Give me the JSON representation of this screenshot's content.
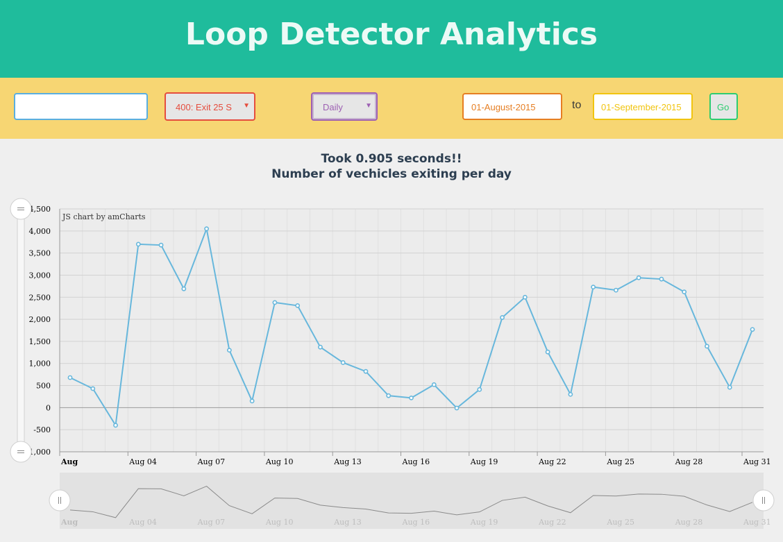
{
  "header": {
    "title": "Loop Detector Analytics"
  },
  "controls": {
    "search_value": "",
    "site_selected": "400: Exit 25 S",
    "frequency_selected": "Daily",
    "date_from": "01-August-2015",
    "to_label": "to",
    "date_to": "01-September-2015",
    "go_label": "Go"
  },
  "chart_titles": {
    "timing": "Took 0.905 seconds!!",
    "subtitle": "Number of vechicles exiting per day"
  },
  "credit": "JS chart by amCharts",
  "colors": {
    "header": "#1fbc9c",
    "controls": "#f7d673",
    "line": "#67b7dc"
  },
  "icons": {
    "dropdown": "caret-down-icon",
    "scroll_handle": "grip-icon"
  },
  "chart_data": {
    "type": "line",
    "x": [
      "Aug 01",
      "Aug 02",
      "Aug 03",
      "Aug 04",
      "Aug 05",
      "Aug 06",
      "Aug 07",
      "Aug 08",
      "Aug 09",
      "Aug 10",
      "Aug 11",
      "Aug 12",
      "Aug 13",
      "Aug 14",
      "Aug 15",
      "Aug 16",
      "Aug 17",
      "Aug 18",
      "Aug 19",
      "Aug 20",
      "Aug 21",
      "Aug 22",
      "Aug 23",
      "Aug 24",
      "Aug 25",
      "Aug 26",
      "Aug 27",
      "Aug 28",
      "Aug 29",
      "Aug 30",
      "Aug 31"
    ],
    "values": [
      680,
      430,
      -400,
      3700,
      3680,
      2690,
      4050,
      1300,
      150,
      2380,
      2310,
      1370,
      1020,
      820,
      270,
      220,
      520,
      -10,
      410,
      2040,
      2500,
      1260,
      300,
      2730,
      2660,
      2940,
      2910,
      2620,
      1390,
      460,
      1770
    ],
    "ylim": [
      -1000,
      4500
    ],
    "yticks": [
      "4,500",
      "4,000",
      "3,500",
      "3,000",
      "2,500",
      "2,000",
      "1,500",
      "1,000",
      "500",
      "0",
      "-500",
      "-1,000"
    ],
    "xticks": [
      "Aug",
      "Aug 04",
      "Aug 07",
      "Aug 10",
      "Aug 13",
      "Aug 16",
      "Aug 19",
      "Aug 22",
      "Aug 25",
      "Aug 28",
      "Aug 31"
    ],
    "grid": true,
    "scrollbar": true
  }
}
